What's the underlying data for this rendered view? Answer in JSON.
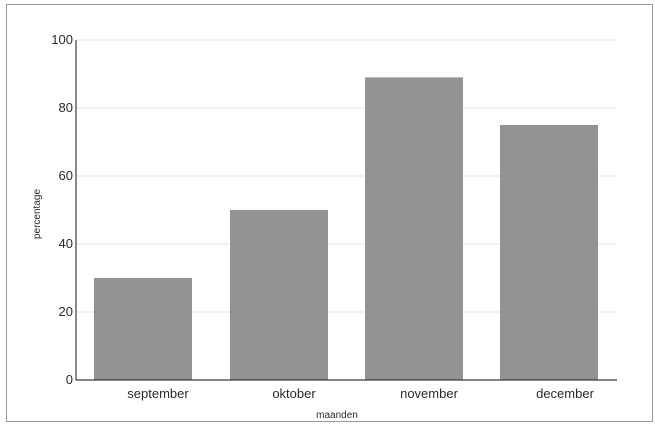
{
  "chart_data": {
    "type": "bar",
    "title": "",
    "xlabel": "maanden",
    "ylabel": "percentage",
    "categories": [
      "september",
      "oktober",
      "november",
      "december"
    ],
    "values": [
      30,
      50,
      89,
      75
    ],
    "ylim": [
      0,
      100
    ],
    "yticks": [
      "0",
      "20",
      "40",
      "60",
      "80",
      "100"
    ],
    "grid": true,
    "legend": "none",
    "bar_color": "#939396",
    "grid_color": "#e6e6e6"
  }
}
